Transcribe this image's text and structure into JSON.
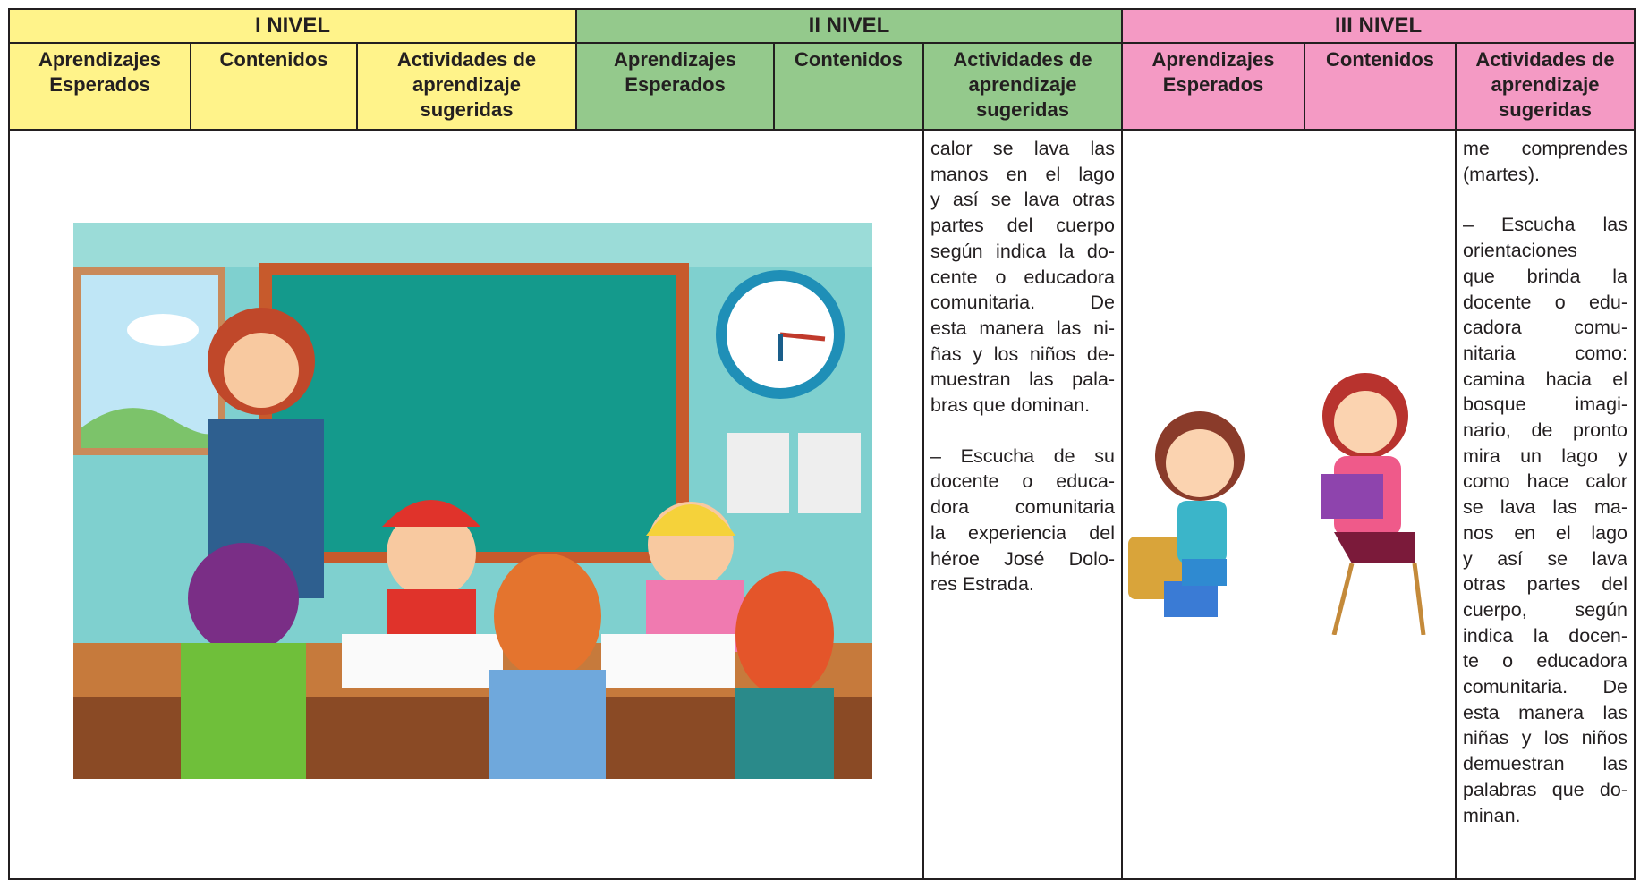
{
  "header": {
    "levels": [
      {
        "title": "I NIVEL",
        "columns": [
          "Aprendizajes Esperados",
          "Contenidos",
          "Actividades de aprendizaje sugeridas"
        ]
      },
      {
        "title": "II NIVEL",
        "columns": [
          "Aprendizajes Esperados",
          "Contenidos",
          "Actividades de aprendizaje sugeridas"
        ]
      },
      {
        "title": "III NIVEL",
        "columns": [
          "Aprendizajes Esperados",
          "Contenidos",
          "Actividades de aprendizaje sugeridas"
        ]
      }
    ]
  },
  "body": {
    "level2_activities": [
      [
        "calor se lava las",
        "manos en el lago",
        "y así se lava otras",
        "partes del cuerpo",
        "según indica la do-",
        "cente o educadora",
        "comunitaria. De",
        "esta manera las ni-",
        "ñas y los niños de-",
        "muestran las pala-",
        "bras que dominan."
      ],
      [
        "– Escucha de su",
        "docente o educa-",
        "dora comunitaria",
        "la experiencia del",
        "héroe José Dolo-",
        "res Estrada."
      ]
    ],
    "level3_activities": [
      [
        "me comprendes",
        "(martes)."
      ],
      [
        "– Escucha las",
        "orientaciones",
        "que brinda la",
        "docente o edu-",
        "cadora comu-",
        "nitaria como:",
        "camina hacia el",
        "bosque imagi-",
        "nario, de pronto",
        "mira un lago y",
        "como hace calor",
        "se lava las ma-",
        "nos en el lago",
        "y así se lava",
        "otras partes del",
        "cuerpo, según",
        "indica la docen-",
        "te o educadora",
        "comunitaria. De",
        "esta manera las",
        "niñas y los niños",
        "demuestran las",
        "palabras que do-",
        "minan."
      ]
    ]
  }
}
